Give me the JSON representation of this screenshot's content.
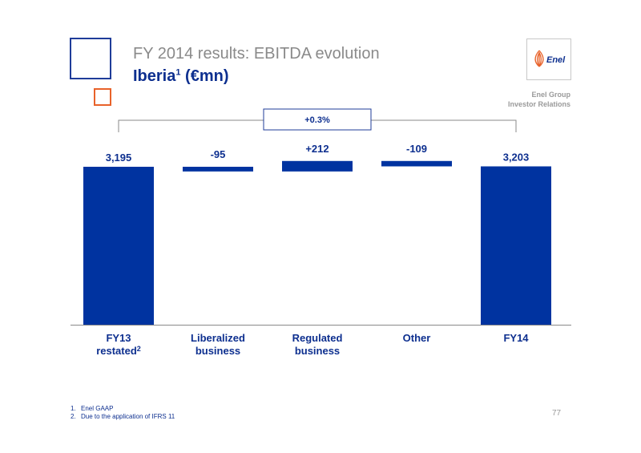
{
  "header": {
    "title": "FY 2014 results: EBITDA evolution",
    "subtitle_main": "Iberia",
    "subtitle_sup": "1",
    "subtitle_unit": " (€mn)"
  },
  "brand": {
    "logo_text": "Enel",
    "line1": "Enel Group",
    "line2": "Investor Relations"
  },
  "colors": {
    "bar": "#0033a0",
    "text": "#0d2f8f",
    "accent": "#e8622a"
  },
  "chart_data": {
    "type": "waterfall",
    "categories": [
      "FY13 restated",
      "Liberalized business",
      "Regulated business",
      "Other",
      "FY14"
    ],
    "category_lines": [
      [
        "FY13",
        "restated"
      ],
      [
        "Liberalized",
        "business"
      ],
      [
        "Regulated",
        "business"
      ],
      [
        "Other"
      ],
      [
        "FY14"
      ]
    ],
    "category_sup": [
      "2",
      "",
      "",
      "",
      ""
    ],
    "values": [
      3195,
      -95,
      212,
      -109,
      3203
    ],
    "value_labels": [
      "3,195",
      "-95",
      "+212",
      "-109",
      "3,203"
    ],
    "kinds": [
      "total",
      "delta",
      "delta",
      "delta",
      "total"
    ],
    "change_label": "+0.3%",
    "ylim": [
      0,
      3400
    ]
  },
  "footnotes": [
    {
      "num": "1.",
      "text": "Enel GAAP"
    },
    {
      "num": "2.",
      "text": "Due to the application of IFRS 11"
    }
  ],
  "page_number": "77"
}
